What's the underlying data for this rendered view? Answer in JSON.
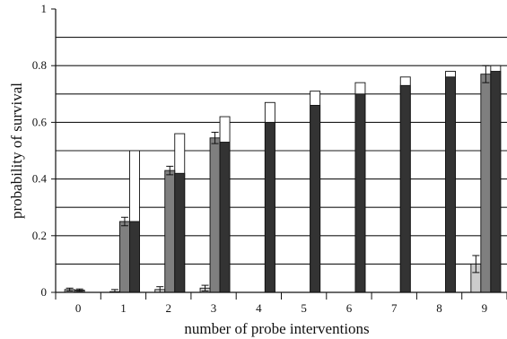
{
  "chart_data": {
    "type": "bar",
    "xlabel": "number of probe interventions",
    "ylabel": "probability of survival",
    "ylim": [
      0,
      1
    ],
    "yticks": [
      "0",
      "0.2",
      "0.4",
      "0.6",
      "0.8",
      "1"
    ],
    "grid_lines": [
      0.1,
      0.2,
      0.3,
      0.4,
      0.5,
      0.6,
      0.7,
      0.8,
      0.9
    ],
    "categories": [
      "0",
      "1",
      "2",
      "3",
      "4",
      "5",
      "6",
      "7",
      "8",
      "9"
    ],
    "series": [
      {
        "fill": "#cccccc",
        "values": [
          0.01,
          0.0,
          0.01,
          0.015,
          null,
          null,
          null,
          null,
          null,
          0.1
        ],
        "errors": [
          0.005,
          0.01,
          0.01,
          0.01,
          null,
          null,
          null,
          null,
          null,
          0.03
        ]
      },
      {
        "fill": "#7f7f7f",
        "values": [
          0.008,
          0.25,
          0.43,
          0.545,
          null,
          null,
          null,
          null,
          null,
          0.77
        ],
        "errors": [
          0.004,
          0.015,
          0.015,
          0.02,
          null,
          null,
          null,
          null,
          null,
          0.03
        ]
      },
      {
        "fill": "#ffffff",
        "values": [
          null,
          0.5,
          0.56,
          0.62,
          0.67,
          0.71,
          0.74,
          0.76,
          0.78,
          0.8
        ],
        "errors": [
          null,
          null,
          null,
          null,
          null,
          null,
          null,
          null,
          null,
          null
        ]
      },
      {
        "fill": "#333333",
        "values": [
          null,
          0.25,
          0.42,
          0.53,
          0.6,
          0.66,
          0.7,
          0.73,
          0.76,
          0.78
        ],
        "errors": [
          null,
          null,
          null,
          null,
          null,
          null,
          null,
          null,
          null,
          null
        ]
      }
    ]
  }
}
